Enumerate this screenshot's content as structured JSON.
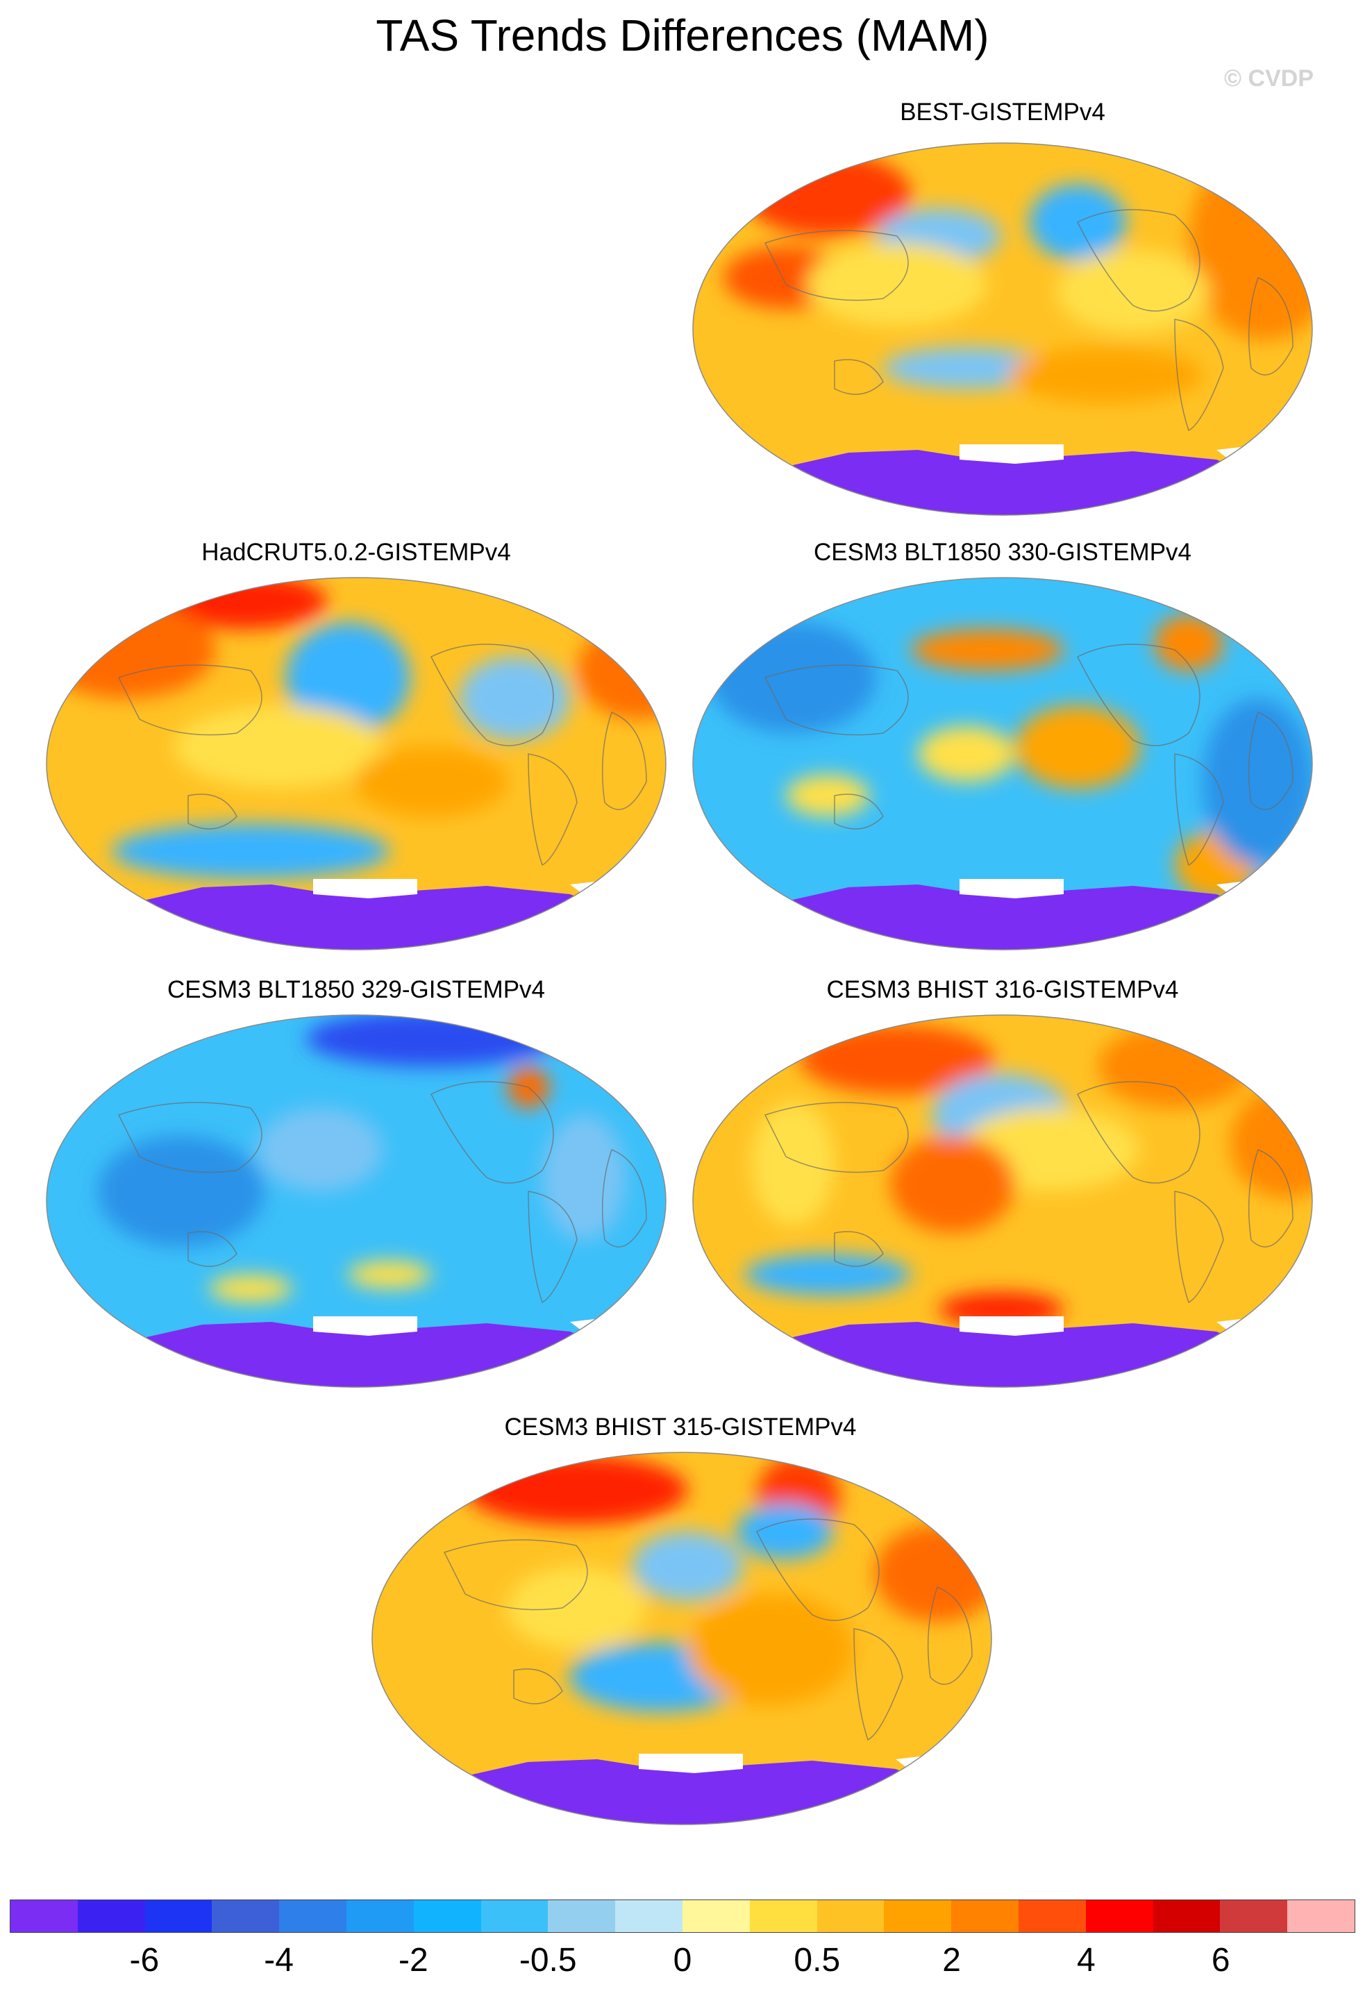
{
  "title": "TAS Trends Differences (MAM)",
  "watermark": "© CVDP",
  "panels": [
    {
      "label": "BEST-GISTEMPv4",
      "scheme": "warm",
      "blobs": [
        [
          "#ff3b00",
          200,
          80,
          120,
          60
        ],
        [
          "#ff5500",
          140,
          200,
          90,
          45
        ],
        [
          "#ff8800",
          830,
          150,
          110,
          140
        ],
        [
          "#7ac4f5",
          360,
          140,
          90,
          40
        ],
        [
          "#39b3ff",
          560,
          120,
          70,
          55
        ],
        [
          "#7ac4f5",
          400,
          330,
          120,
          30
        ],
        [
          "#ffe04a",
          300,
          210,
          130,
          60
        ],
        [
          "#ffe04a",
          640,
          220,
          110,
          60
        ],
        [
          "#ffa500",
          600,
          340,
          140,
          40
        ]
      ]
    },
    {
      "label": "HadCRUT5.0.2-GISTEMPv4",
      "scheme": "warm",
      "blobs": [
        [
          "#ff2200",
          290,
          40,
          120,
          40
        ],
        [
          "#ff6a00",
          120,
          110,
          130,
          70
        ],
        [
          "#ff7000",
          860,
          140,
          90,
          70
        ],
        [
          "#39b3ff",
          440,
          150,
          90,
          80
        ],
        [
          "#7ac4f5",
          680,
          180,
          80,
          60
        ],
        [
          "#ffe04a",
          340,
          250,
          150,
          60
        ],
        [
          "#39b3ff",
          300,
          400,
          200,
          40
        ],
        [
          "#ffa500",
          560,
          300,
          110,
          50
        ]
      ]
    },
    {
      "label": "CESM3 BLT1850 330-GISTEMPv4",
      "scheme": "cool",
      "blobs": [
        [
          "#ff8800",
          430,
          110,
          110,
          30
        ],
        [
          "#ff8800",
          720,
          100,
          50,
          40
        ],
        [
          "#ffa500",
          560,
          250,
          90,
          60
        ],
        [
          "#ffe04a",
          400,
          260,
          70,
          40
        ],
        [
          "#ffa500",
          760,
          420,
          60,
          50
        ],
        [
          "#ffe04a",
          200,
          320,
          60,
          30
        ],
        [
          "#2a92e8",
          150,
          150,
          120,
          80
        ],
        [
          "#2a92e8",
          820,
          300,
          80,
          120
        ]
      ]
    },
    {
      "label": "CESM3 BLT1850 329-GISTEMPv4",
      "scheme": "cool",
      "blobs": [
        [
          "#2b4bf0",
          560,
          40,
          180,
          40
        ],
        [
          "#ff6a00",
          700,
          110,
          30,
          30
        ],
        [
          "#ffe04a",
          300,
          400,
          60,
          20
        ],
        [
          "#ffe04a",
          500,
          380,
          60,
          20
        ],
        [
          "#7ac4f5",
          400,
          200,
          90,
          60
        ],
        [
          "#2a92e8",
          200,
          260,
          120,
          80
        ],
        [
          "#7ac4f5",
          780,
          240,
          60,
          90
        ]
      ]
    },
    {
      "label": "CESM3 BHIST 316-GISTEMPv4",
      "scheme": "warm",
      "blobs": [
        [
          "#ff5500",
          300,
          70,
          140,
          50
        ],
        [
          "#ff8800",
          700,
          80,
          110,
          60
        ],
        [
          "#ff8800",
          860,
          190,
          80,
          80
        ],
        [
          "#7ac4f5",
          450,
          150,
          100,
          60
        ],
        [
          "#39b3ff",
          200,
          380,
          120,
          30
        ],
        [
          "#ffe04a",
          520,
          200,
          130,
          60
        ],
        [
          "#ff6a00",
          380,
          250,
          90,
          70
        ],
        [
          "#ff2200",
          450,
          430,
          90,
          25
        ],
        [
          "#ffe04a",
          150,
          220,
          60,
          90
        ]
      ]
    },
    {
      "label": "CESM3 BHIST 315-GISTEMPv4",
      "scheme": "warm",
      "blobs": [
        [
          "#ff2200",
          300,
          60,
          160,
          50
        ],
        [
          "#ff3b00",
          620,
          70,
          60,
          60
        ],
        [
          "#7ac4f5",
          460,
          170,
          80,
          50
        ],
        [
          "#39b3ff",
          600,
          120,
          70,
          40
        ],
        [
          "#39b3ff",
          420,
          330,
          130,
          50
        ],
        [
          "#ff6a00",
          820,
          180,
          90,
          70
        ],
        [
          "#ffe04a",
          300,
          230,
          100,
          60
        ],
        [
          "#ffa500",
          580,
          290,
          120,
          80
        ]
      ]
    }
  ],
  "colorbar": {
    "colors": [
      "#7b2df3",
      "#3b22f2",
      "#1d34f5",
      "#3d5fd8",
      "#2f7fea",
      "#1f9bf5",
      "#11b3ff",
      "#3cc0f9",
      "#94cfef",
      "#bfe6f7",
      "#fff799",
      "#ffde40",
      "#ffc224",
      "#ffa200",
      "#ff8200",
      "#ff4f0a",
      "#ff0000",
      "#d40000",
      "#d13a3a",
      "#ffb3b3"
    ],
    "ticks": [
      {
        "label": "-6",
        "boundary": 2
      },
      {
        "label": "-4",
        "boundary": 4
      },
      {
        "label": "-2",
        "boundary": 6
      },
      {
        "label": "-0.5",
        "boundary": 8
      },
      {
        "label": "0",
        "boundary": 10
      },
      {
        "label": "0.5",
        "boundary": 12
      },
      {
        "label": "2",
        "boundary": 14
      },
      {
        "label": "4",
        "boundary": 16
      },
      {
        "label": "6",
        "boundary": 18
      }
    ]
  }
}
